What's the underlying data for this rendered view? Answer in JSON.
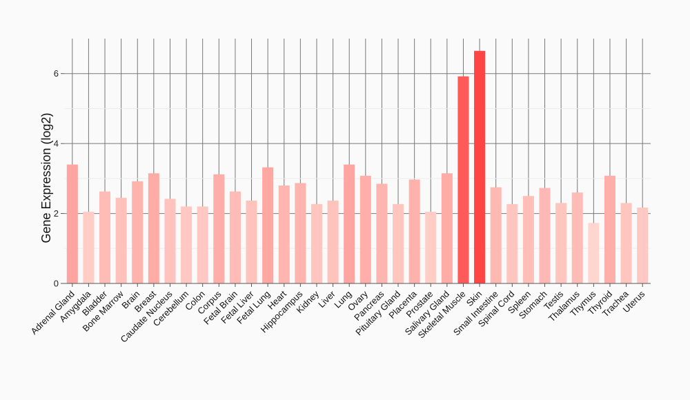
{
  "chart_data": {
    "type": "bar",
    "title": "",
    "xlabel": "",
    "ylabel": "Gene Expression (log2)",
    "ylim": [
      0,
      7
    ],
    "yticks": [
      0,
      2,
      4,
      6
    ],
    "grid": true,
    "legend": "none",
    "colors": {
      "low": "#ffd6cf",
      "high": "#ff4444"
    },
    "categories": [
      "Adrenal Gland",
      "Amygdala",
      "Bladder",
      "Bone Marrow",
      "Brain",
      "Breast",
      "Caudate Nucleus",
      "Cerebellum",
      "Colon",
      "Corpus",
      "Fetal Brain",
      "Fetal Liver",
      "Fetal Lung",
      "Heart",
      "Hippocampus",
      "Kidney",
      "Liver",
      "Lung",
      "Ovary",
      "Pancreas",
      "Pituitary Gland",
      "Placenta",
      "Prostate",
      "Salivary Gland",
      "Skeletal Muscle",
      "Skin",
      "Small Intestine",
      "Spinal Cord",
      "Spleen",
      "Stomach",
      "Testis",
      "Thalamus",
      "Thymus",
      "Thyroid",
      "Trachea",
      "Uterus"
    ],
    "values": [
      3.4,
      2.05,
      2.63,
      2.45,
      2.92,
      3.15,
      2.42,
      2.2,
      2.2,
      3.12,
      2.63,
      2.37,
      3.32,
      2.8,
      2.87,
      2.27,
      2.37,
      3.4,
      3.08,
      2.85,
      2.27,
      2.97,
      2.05,
      3.15,
      5.92,
      6.65,
      2.75,
      2.27,
      2.5,
      2.73,
      2.3,
      2.6,
      1.73,
      3.08,
      2.3,
      2.17
    ]
  }
}
